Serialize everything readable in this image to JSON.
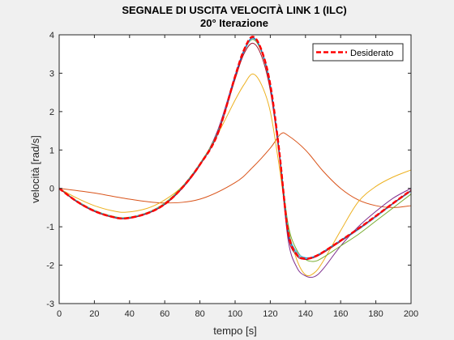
{
  "chart_data": {
    "type": "line",
    "title": "SEGNALE DI USCITA VELOCITÀ LINK 1 (ILC)",
    "subtitle": "20° Iterazione",
    "xlabel": "tempo [s]",
    "ylabel": "velocità [rad/s]",
    "xlim": [
      0,
      200
    ],
    "ylim": [
      -3,
      4
    ],
    "xticks": [
      "0",
      "20",
      "40",
      "60",
      "80",
      "100",
      "120",
      "140",
      "160",
      "180",
      "200"
    ],
    "yticks": [
      "-3",
      "-2",
      "-1",
      "0",
      "1",
      "2",
      "3",
      "4"
    ],
    "grid": false,
    "legend_position": "top-right",
    "background": "#f0f0f0",
    "plot_background": "#ffffff",
    "series": [
      {
        "name": "",
        "color": "#D95319",
        "style": "solid",
        "x": [
          0,
          20,
          40,
          60,
          80,
          100,
          110,
          120,
          126,
          130,
          140,
          150,
          160,
          170,
          180,
          190,
          200
        ],
        "y": [
          0,
          -0.12,
          -0.28,
          -0.38,
          -0.28,
          0.15,
          0.55,
          1.05,
          1.42,
          1.38,
          1.0,
          0.45,
          0.0,
          -0.3,
          -0.45,
          -0.5,
          -0.45
        ]
      },
      {
        "name": "",
        "color": "#EDB120",
        "style": "solid",
        "x": [
          0,
          10,
          20,
          30,
          38,
          50,
          60,
          70,
          80,
          90,
          100,
          105,
          110,
          115,
          120,
          125,
          130,
          135,
          140,
          145,
          150,
          160,
          170,
          180,
          190,
          200
        ],
        "y": [
          0,
          -0.25,
          -0.45,
          -0.58,
          -0.62,
          -0.52,
          -0.3,
          0.05,
          0.6,
          1.4,
          2.3,
          2.7,
          2.98,
          2.7,
          2.0,
          0.6,
          -1.0,
          -1.85,
          -2.25,
          -2.2,
          -1.9,
          -1.1,
          -0.35,
          0.05,
          0.3,
          0.48
        ]
      },
      {
        "name": "",
        "color": "#7E2F8E",
        "style": "solid",
        "x": [
          0,
          10,
          20,
          30,
          38,
          50,
          60,
          70,
          80,
          90,
          100,
          105,
          110,
          115,
          120,
          125,
          130,
          135,
          140,
          145,
          150,
          160,
          170,
          180,
          190,
          200
        ],
        "y": [
          0,
          -0.35,
          -0.6,
          -0.74,
          -0.78,
          -0.65,
          -0.42,
          0.0,
          0.6,
          1.5,
          2.95,
          3.6,
          3.92,
          3.6,
          2.7,
          1.0,
          -1.3,
          -2.05,
          -2.28,
          -2.3,
          -2.1,
          -1.5,
          -1.0,
          -0.6,
          -0.25,
          0.0
        ]
      },
      {
        "name": "",
        "color": "#77AC30",
        "style": "solid",
        "x": [
          0,
          10,
          20,
          30,
          38,
          50,
          60,
          70,
          80,
          90,
          100,
          105,
          110,
          115,
          120,
          125,
          130,
          135,
          140,
          145,
          150,
          160,
          170,
          180,
          190,
          200
        ],
        "y": [
          0,
          -0.32,
          -0.57,
          -0.72,
          -0.76,
          -0.63,
          -0.38,
          0.05,
          0.65,
          1.45,
          2.85,
          3.55,
          3.88,
          3.55,
          2.65,
          1.0,
          -0.9,
          -1.6,
          -1.85,
          -1.9,
          -1.8,
          -1.5,
          -1.2,
          -0.85,
          -0.5,
          -0.15
        ]
      },
      {
        "name": "",
        "color": "#4DBEEE",
        "style": "solid",
        "x": [
          0,
          10,
          20,
          30,
          38,
          50,
          60,
          70,
          80,
          90,
          100,
          105,
          110,
          115,
          120,
          125,
          130,
          135,
          140,
          145,
          150,
          160,
          170,
          180,
          190,
          200
        ],
        "y": [
          0,
          -0.33,
          -0.58,
          -0.73,
          -0.77,
          -0.64,
          -0.4,
          0.03,
          0.63,
          1.42,
          2.88,
          3.55,
          3.9,
          3.58,
          2.7,
          1.0,
          -1.05,
          -1.65,
          -1.8,
          -1.78,
          -1.68,
          -1.38,
          -1.08,
          -0.75,
          -0.4,
          -0.08
        ]
      },
      {
        "name": "",
        "color": "#0072BD",
        "style": "solid",
        "x": [
          0,
          10,
          20,
          30,
          38,
          50,
          60,
          70,
          80,
          90,
          100,
          105,
          110,
          115,
          120,
          125,
          130,
          135,
          140,
          145,
          150,
          160,
          170,
          180,
          190,
          200
        ],
        "y": [
          0,
          -0.34,
          -0.59,
          -0.74,
          -0.78,
          -0.65,
          -0.41,
          0.02,
          0.62,
          1.41,
          2.9,
          3.58,
          3.93,
          3.58,
          2.68,
          1.0,
          -1.1,
          -1.7,
          -1.82,
          -1.77,
          -1.65,
          -1.35,
          -1.05,
          -0.72,
          -0.38,
          -0.05
        ]
      },
      {
        "name": "",
        "color": "#A2142F",
        "style": "solid",
        "x": [
          0,
          10,
          20,
          30,
          38,
          50,
          60,
          70,
          80,
          90,
          100,
          105,
          110,
          115,
          120,
          125,
          130,
          135,
          140,
          145,
          150,
          160,
          170,
          180,
          190,
          200
        ],
        "y": [
          0,
          -0.35,
          -0.6,
          -0.75,
          -0.79,
          -0.66,
          -0.42,
          0.01,
          0.61,
          1.4,
          2.85,
          3.5,
          3.78,
          3.45,
          2.55,
          0.9,
          -1.2,
          -1.75,
          -1.85,
          -1.8,
          -1.68,
          -1.38,
          -1.06,
          -0.72,
          -0.38,
          -0.06
        ]
      },
      {
        "name": "Desiderato",
        "color": "#FF0000",
        "style": "dashed",
        "x": [
          0,
          10,
          20,
          30,
          38,
          50,
          60,
          70,
          80,
          90,
          100,
          105,
          110,
          115,
          120,
          125,
          130,
          135,
          140,
          145,
          150,
          160,
          170,
          180,
          190,
          200
        ],
        "y": [
          0,
          -0.34,
          -0.59,
          -0.74,
          -0.78,
          -0.65,
          -0.41,
          0.02,
          0.62,
          1.41,
          2.92,
          3.6,
          3.95,
          3.6,
          2.7,
          1.0,
          -1.1,
          -1.72,
          -1.83,
          -1.78,
          -1.66,
          -1.36,
          -1.05,
          -0.72,
          -0.38,
          -0.05
        ]
      }
    ]
  }
}
